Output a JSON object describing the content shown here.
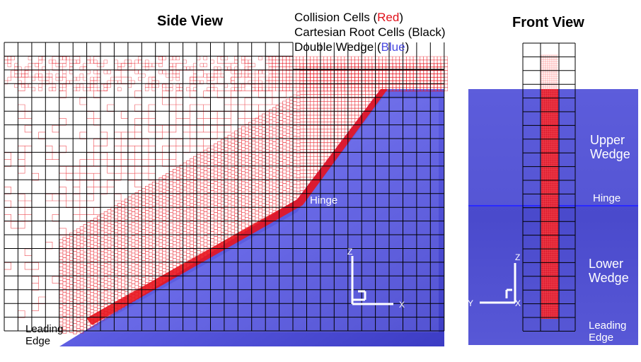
{
  "titles": {
    "side": "Side View",
    "front": "Front View"
  },
  "legend": {
    "collision_prefix": "Collision Cells (",
    "collision_color_word": "Red",
    "collision_suffix": ")",
    "cartesian": "Cartesian Root Cells (Black)",
    "wedge_prefix": "Double Wedge (",
    "wedge_color_word": "Blue",
    "wedge_suffix": ")"
  },
  "side_labels": {
    "hinge": "Hinge",
    "leading_edge_1": "Leading",
    "leading_edge_2": "Edge"
  },
  "front_labels": {
    "upper_1": "Upper",
    "upper_2": "Wedge",
    "hinge": "Hinge",
    "lower_1": "Lower",
    "lower_2": "Wedge",
    "leading_1": "Leading",
    "leading_2": "Edge"
  },
  "axes": {
    "z": "Z",
    "x": "X",
    "y": "Y"
  },
  "colors": {
    "collision": "#e8141e",
    "grid": "#000000",
    "wedge": "#4d4dd6",
    "wedge_light": "#7a7af0",
    "legend_red": "#e0101a",
    "legend_blue": "#4a4ae0",
    "hinge_line": "#2a2aff"
  }
}
